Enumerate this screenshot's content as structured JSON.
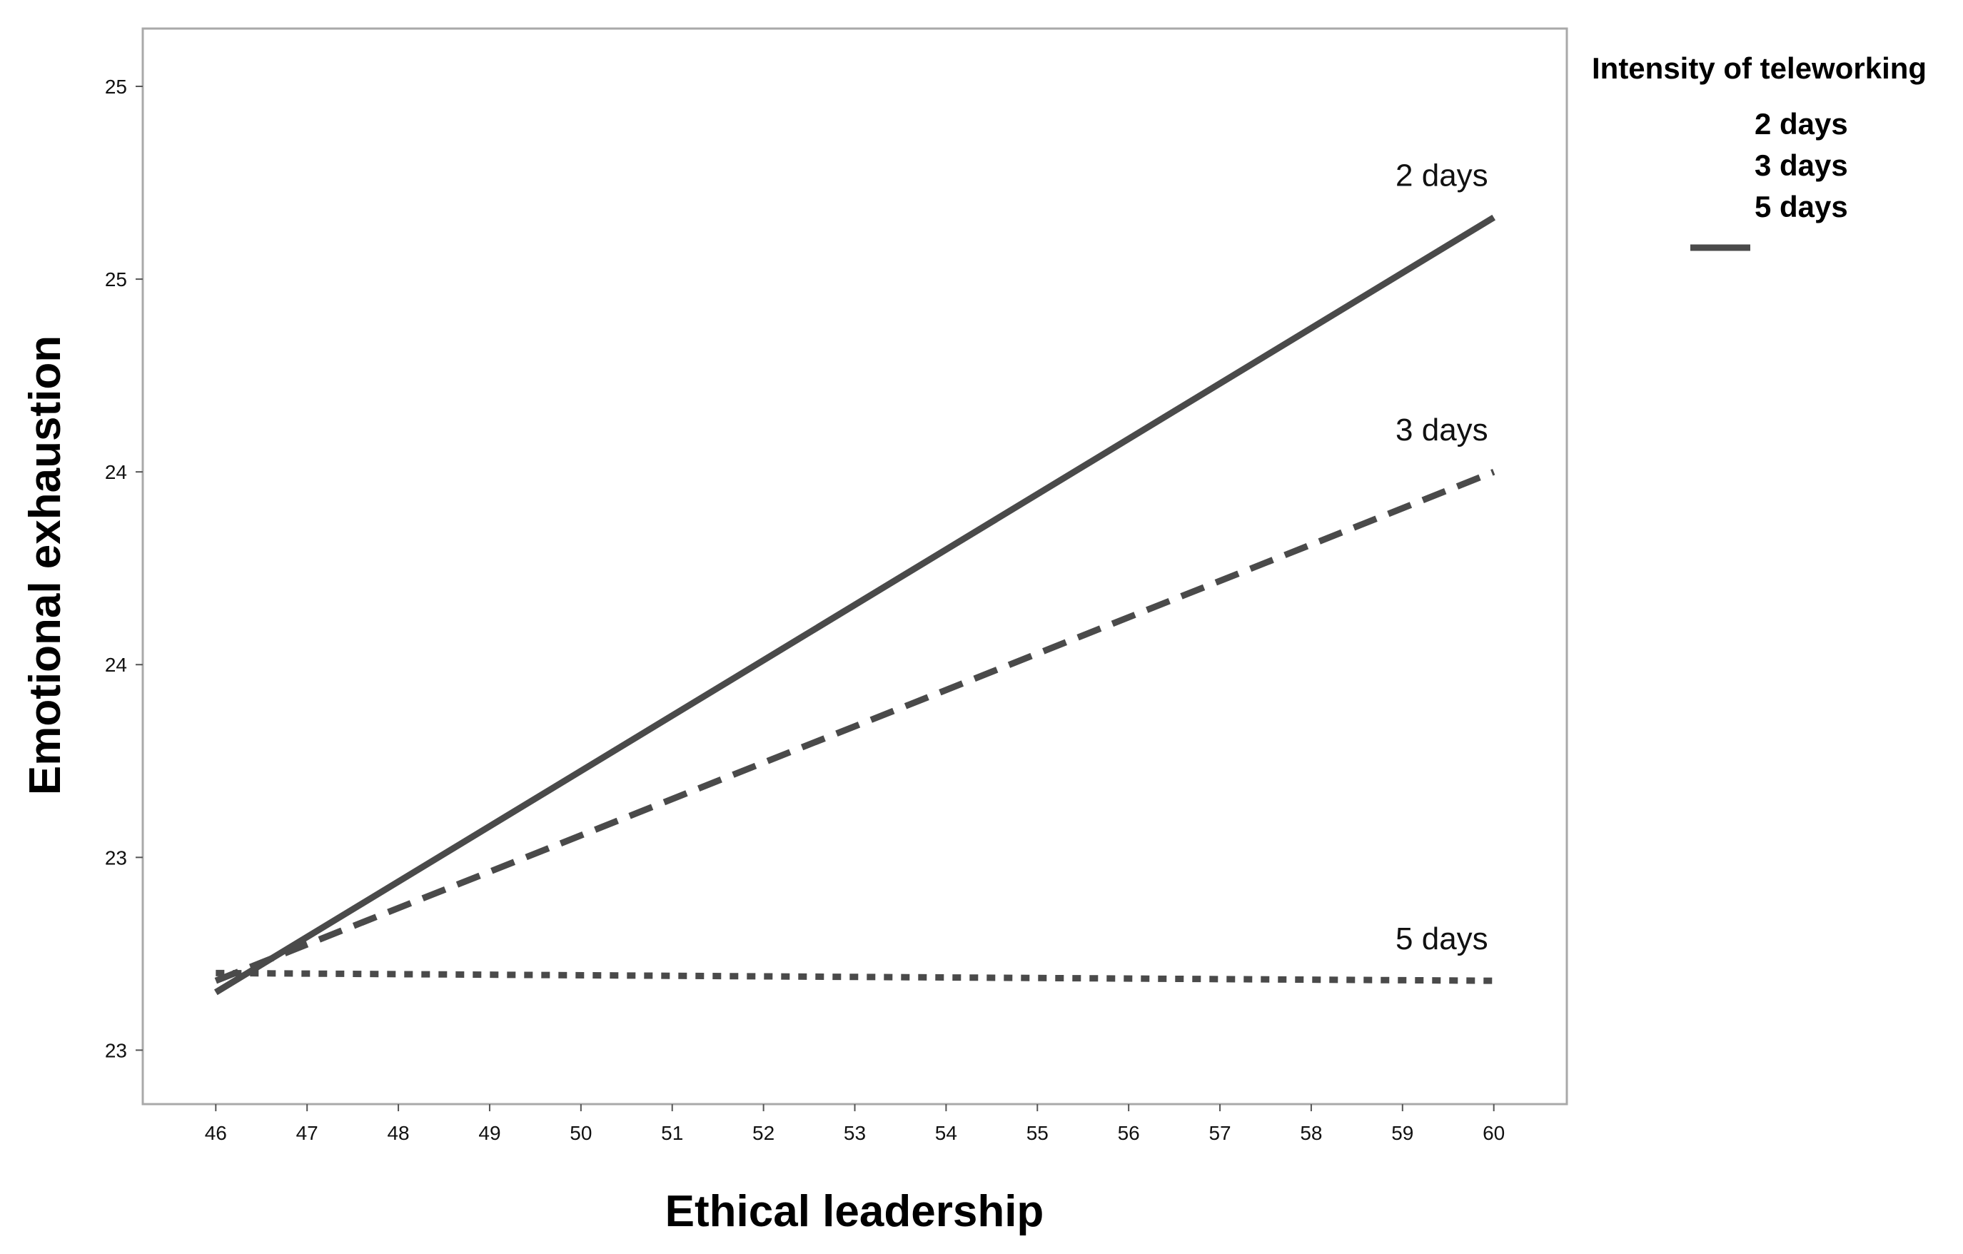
{
  "chart_data": {
    "type": "line",
    "xlabel": "Ethical leadership",
    "ylabel": "Emotional exhaustion",
    "x_ticks": [
      46,
      47,
      48,
      49,
      50,
      51,
      52,
      53,
      54,
      55,
      56,
      57,
      58,
      59,
      60
    ],
    "xlim": [
      45.2,
      60.8
    ],
    "y_ticks": [
      {
        "value": 22.5,
        "label": "23"
      },
      {
        "value": 23.0,
        "label": "23"
      },
      {
        "value": 23.5,
        "label": "24"
      },
      {
        "value": 24.0,
        "label": "24"
      },
      {
        "value": 24.5,
        "label": "25"
      },
      {
        "value": 25.0,
        "label": "25"
      }
    ],
    "ylim": [
      22.36,
      25.15
    ],
    "grid": false,
    "legend": {
      "title": "Intensity of teleworking",
      "placement": "top-right outside",
      "items": [
        "2 days",
        "3 days",
        "5 days"
      ]
    },
    "series": [
      {
        "name": "2 days",
        "style": "solid",
        "color": "#4a4a4a",
        "x": [
          46,
          60
        ],
        "y": [
          22.65,
          24.66
        ]
      },
      {
        "name": "3 days",
        "style": "dashed",
        "color": "#4a4a4a",
        "x": [
          46,
          60
        ],
        "y": [
          22.68,
          24.0
        ]
      },
      {
        "name": "5 days",
        "style": "dotted",
        "color": "#4a4a4a",
        "x": [
          46,
          60
        ],
        "y": [
          22.7,
          22.68
        ]
      }
    ]
  }
}
